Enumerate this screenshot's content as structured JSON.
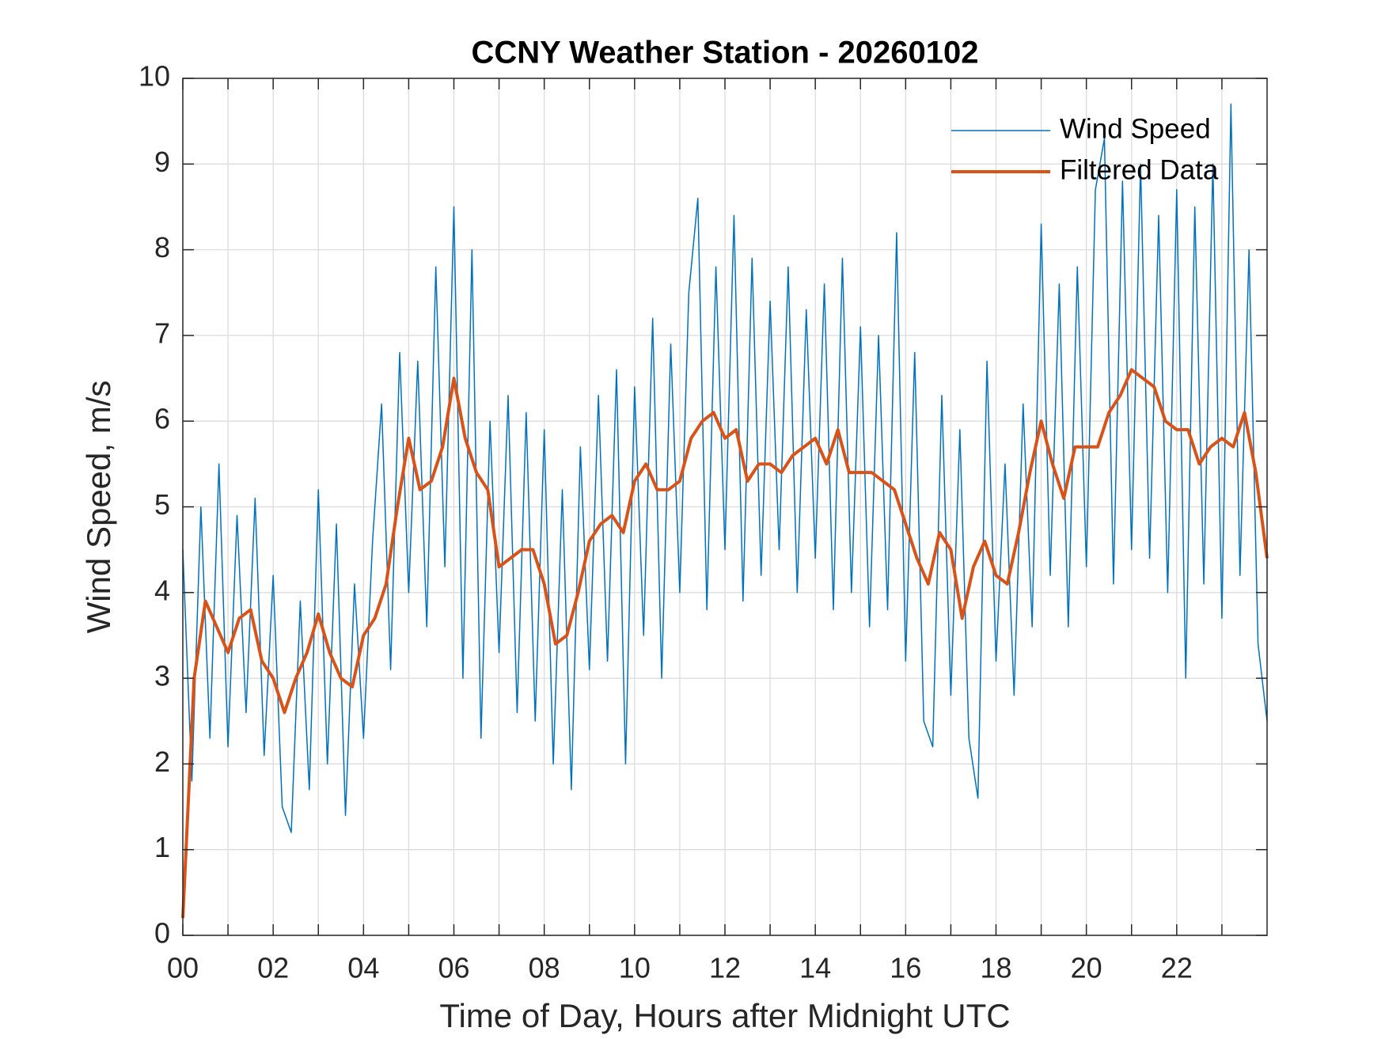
{
  "chart_data": {
    "type": "line",
    "title": "CCNY Weather Station - 20260102",
    "x_label": "Time of Day, Hours after Midnight UTC",
    "y_label": "Wind Speed, m/s",
    "xlim": [
      0,
      24
    ],
    "ylim": [
      0,
      10
    ],
    "xticks": [
      {
        "value": 0,
        "label": "00"
      },
      {
        "value": 2,
        "label": "02"
      },
      {
        "value": 4,
        "label": "04"
      },
      {
        "value": 6,
        "label": "06"
      },
      {
        "value": 8,
        "label": "08"
      },
      {
        "value": 10,
        "label": "10"
      },
      {
        "value": 12,
        "label": "12"
      },
      {
        "value": 14,
        "label": "14"
      },
      {
        "value": 16,
        "label": "16"
      },
      {
        "value": 18,
        "label": "18"
      },
      {
        "value": 20,
        "label": "20"
      },
      {
        "value": 22,
        "label": "22"
      }
    ],
    "x_minor_ticks": [
      1,
      3,
      5,
      7,
      9,
      11,
      13,
      15,
      17,
      19,
      21,
      23
    ],
    "yticks": [
      0,
      1,
      2,
      3,
      4,
      5,
      6,
      7,
      8,
      9,
      10
    ],
    "grid": true,
    "legend_position": "upper-right",
    "series": [
      {
        "name": "Wind Speed",
        "color": "#0072bd",
        "line_width": 1.5,
        "x": [
          0,
          0.2,
          0.4,
          0.6,
          0.8,
          1,
          1.2,
          1.4,
          1.6,
          1.8,
          2,
          2.2,
          2.4,
          2.6,
          2.8,
          3,
          3.2,
          3.4,
          3.6,
          3.8,
          4,
          4.2,
          4.4,
          4.6,
          4.8,
          5,
          5.2,
          5.4,
          5.6,
          5.8,
          6,
          6.2,
          6.4,
          6.6,
          6.8,
          7,
          7.2,
          7.4,
          7.6,
          7.8,
          8,
          8.2,
          8.4,
          8.6,
          8.8,
          9,
          9.2,
          9.4,
          9.6,
          9.8,
          10,
          10.2,
          10.4,
          10.6,
          10.8,
          11,
          11.2,
          11.4,
          11.6,
          11.8,
          12,
          12.2,
          12.4,
          12.6,
          12.8,
          13,
          13.2,
          13.4,
          13.6,
          13.8,
          14,
          14.2,
          14.4,
          14.6,
          14.8,
          15,
          15.2,
          15.4,
          15.6,
          15.8,
          16,
          16.2,
          16.4,
          16.6,
          16.8,
          17,
          17.2,
          17.4,
          17.6,
          17.8,
          18,
          18.2,
          18.4,
          18.6,
          18.8,
          19,
          19.2,
          19.4,
          19.6,
          19.8,
          20,
          20.2,
          20.4,
          20.6,
          20.8,
          21,
          21.2,
          21.4,
          21.6,
          21.8,
          22,
          22.2,
          22.4,
          22.6,
          22.8,
          23,
          23.2,
          23.4,
          23.6,
          23.8,
          24
        ],
        "values": [
          4.5,
          1.8,
          5.0,
          2.3,
          5.5,
          2.2,
          4.9,
          2.6,
          5.1,
          2.1,
          4.2,
          1.5,
          1.2,
          3.9,
          1.7,
          5.2,
          2.0,
          4.8,
          1.4,
          4.1,
          2.3,
          4.6,
          6.2,
          3.1,
          6.8,
          4.0,
          6.7,
          3.6,
          7.8,
          4.3,
          8.5,
          3.0,
          8.0,
          2.3,
          6.0,
          3.3,
          6.3,
          2.6,
          6.1,
          2.5,
          5.9,
          2.0,
          5.2,
          1.7,
          5.7,
          3.1,
          6.3,
          3.2,
          6.6,
          2.0,
          6.4,
          3.5,
          7.2,
          3.0,
          6.9,
          4.0,
          7.5,
          8.6,
          3.8,
          7.8,
          4.5,
          8.4,
          3.9,
          7.9,
          4.2,
          7.4,
          4.5,
          7.8,
          4.0,
          7.3,
          4.4,
          7.6,
          3.8,
          7.9,
          4.0,
          7.1,
          3.6,
          7.0,
          3.8,
          8.2,
          3.2,
          6.8,
          2.5,
          2.2,
          6.3,
          2.8,
          5.9,
          2.3,
          1.6,
          6.7,
          3.2,
          5.5,
          2.8,
          6.2,
          3.6,
          8.3,
          4.2,
          7.6,
          3.6,
          7.8,
          4.3,
          8.7,
          9.3,
          4.1,
          8.8,
          4.5,
          9.0,
          4.4,
          8.4,
          4.0,
          8.7,
          3.0,
          8.5,
          4.1,
          9.0,
          3.7,
          9.7,
          4.2,
          8.0,
          3.4,
          2.5
        ]
      },
      {
        "name": "Filtered Data",
        "color": "#d95319",
        "line_width": 4,
        "x": [
          0,
          0.25,
          0.5,
          0.75,
          1,
          1.25,
          1.5,
          1.75,
          2,
          2.25,
          2.5,
          2.75,
          3,
          3.25,
          3.5,
          3.75,
          4,
          4.25,
          4.5,
          4.75,
          5,
          5.25,
          5.5,
          5.75,
          6,
          6.25,
          6.5,
          6.75,
          7,
          7.25,
          7.5,
          7.75,
          8,
          8.25,
          8.5,
          8.75,
          9,
          9.25,
          9.5,
          9.75,
          10,
          10.25,
          10.5,
          10.75,
          11,
          11.25,
          11.5,
          11.75,
          12,
          12.25,
          12.5,
          12.75,
          13,
          13.25,
          13.5,
          13.75,
          14,
          14.25,
          14.5,
          14.75,
          15,
          15.25,
          15.5,
          15.75,
          16,
          16.25,
          16.5,
          16.75,
          17,
          17.25,
          17.5,
          17.75,
          18,
          18.25,
          18.5,
          18.75,
          19,
          19.25,
          19.5,
          19.75,
          20,
          20.25,
          20.5,
          20.75,
          21,
          21.25,
          21.5,
          21.75,
          22,
          22.25,
          22.5,
          22.75,
          23,
          23.25,
          23.5,
          23.75,
          24
        ],
        "values": [
          0.2,
          3.0,
          3.9,
          3.6,
          3.3,
          3.7,
          3.8,
          3.2,
          3.0,
          2.6,
          3.0,
          3.3,
          3.75,
          3.3,
          3.0,
          2.9,
          3.5,
          3.7,
          4.1,
          5.0,
          5.8,
          5.2,
          5.3,
          5.7,
          6.5,
          5.8,
          5.4,
          5.2,
          4.3,
          4.4,
          4.5,
          4.5,
          4.1,
          3.4,
          3.5,
          4.0,
          4.6,
          4.8,
          4.9,
          4.7,
          5.3,
          5.5,
          5.2,
          5.2,
          5.3,
          5.8,
          6.0,
          6.1,
          5.8,
          5.9,
          5.3,
          5.5,
          5.5,
          5.4,
          5.6,
          5.7,
          5.8,
          5.5,
          5.9,
          5.4,
          5.4,
          5.4,
          5.3,
          5.2,
          4.8,
          4.4,
          4.1,
          4.7,
          4.5,
          3.7,
          4.3,
          4.6,
          4.2,
          4.1,
          4.7,
          5.4,
          6.0,
          5.5,
          5.1,
          5.7,
          5.7,
          5.7,
          6.1,
          6.3,
          6.6,
          6.5,
          6.4,
          6.0,
          5.9,
          5.9,
          5.5,
          5.7,
          5.8,
          5.7,
          6.1,
          5.4,
          4.4
        ]
      }
    ]
  }
}
